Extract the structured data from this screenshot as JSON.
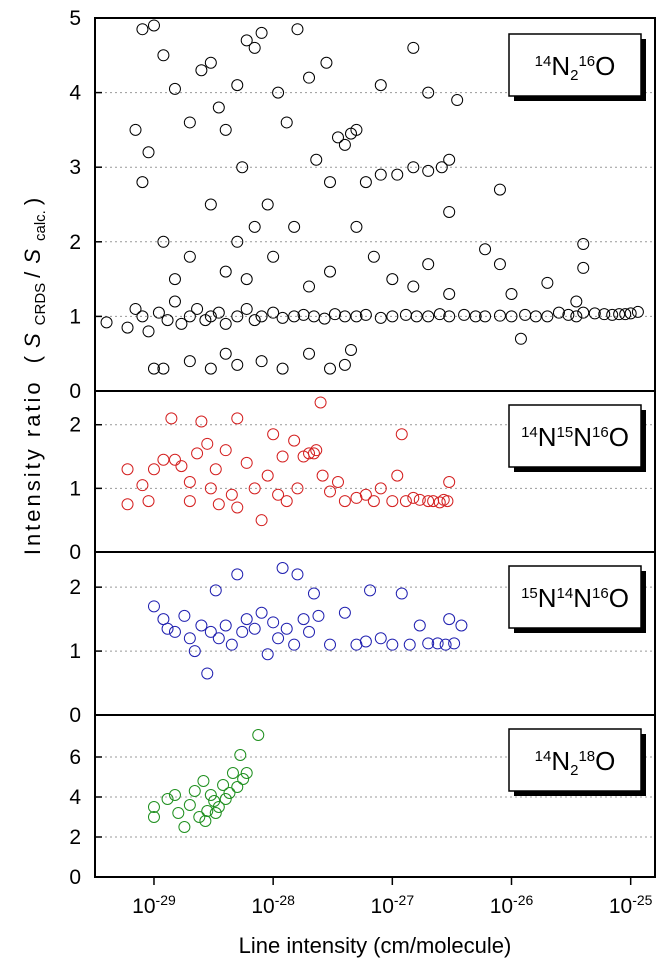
{
  "chart_data": [
    {
      "type": "scatter",
      "color": "#000000",
      "label": [
        {
          "text": "14",
          "style": "sup"
        },
        {
          "text": "N",
          "style": "normal"
        },
        {
          "text": "2",
          "style": "sub"
        },
        {
          "text": "16",
          "style": "sup"
        },
        {
          "text": "O",
          "style": "normal"
        }
      ],
      "xlim": [
        3.2e-30,
        1.6e-25
      ],
      "ylim": [
        0,
        5
      ],
      "yticks": [
        0,
        1,
        2,
        3,
        4,
        5
      ],
      "grid": true,
      "x": [
        4e-30,
        6e-30,
        7e-30,
        8e-30,
        9e-30,
        1.1e-29,
        1.3e-29,
        1.5e-29,
        1.7e-29,
        2e-29,
        2.3e-29,
        2.7e-29,
        3e-29,
        3.5e-29,
        4e-29,
        5e-29,
        6e-29,
        7e-29,
        8e-29,
        1e-28,
        1.2e-28,
        1.5e-28,
        1.8e-28,
        2.2e-28,
        2.7e-28,
        3.3e-28,
        4e-28,
        5e-28,
        6e-28,
        8e-28,
        1e-27,
        1.3e-27,
        1.6e-27,
        2e-27,
        2.5e-27,
        3e-27,
        4e-27,
        5e-27,
        6e-27,
        8e-27,
        1e-26,
        1.3e-26,
        1.6e-26,
        2e-26,
        2.5e-26,
        3e-26,
        3.5e-26,
        4e-26,
        5e-26,
        6e-26,
        7e-26,
        8e-26,
        9e-26,
        1e-25,
        1.15e-25,
        1e-29,
        1.2e-29,
        2e-29,
        3e-29,
        4e-29,
        5e-29,
        8e-29,
        1.2e-28,
        2e-28,
        3e-28,
        4e-28,
        4.5e-28,
        8e-30,
        1e-29,
        1.2e-29,
        7e-30,
        8e-30,
        9e-30,
        1.5e-29,
        2e-29,
        2.5e-29,
        3e-29,
        3.5e-29,
        4e-29,
        5e-29,
        5.5e-29,
        6e-29,
        7e-29,
        8e-29,
        9e-29,
        1.1e-28,
        1.3e-28,
        1.6e-28,
        2e-28,
        2.3e-28,
        2.8e-28,
        3.5e-28,
        4e-28,
        4.5e-28,
        5e-28,
        3e-28,
        6e-28,
        8e-28,
        1.1e-27,
        1.5e-27,
        2e-27,
        2.6e-27,
        3e-27,
        3.5e-27,
        3e-27,
        1.5e-27,
        8e-28,
        2e-27,
        5e-29,
        7e-29,
        1.2e-29,
        1.5e-29,
        2e-29,
        3e-29,
        4e-29,
        6e-29,
        1e-28,
        1.5e-28,
        2e-28,
        3e-28,
        5e-28,
        7e-28,
        1e-27,
        1.5e-27,
        2e-27,
        3e-27,
        6e-27,
        8e-27,
        1.2e-26,
        8e-27,
        4e-26,
        4e-26,
        3.5e-26,
        1e-26,
        2e-26
      ],
      "values": [
        0.92,
        0.85,
        1.1,
        1.0,
        0.8,
        1.05,
        0.95,
        1.2,
        0.9,
        1.0,
        1.1,
        0.95,
        1.0,
        1.05,
        0.9,
        1.0,
        1.1,
        0.95,
        1.0,
        1.05,
        0.98,
        1.0,
        1.02,
        1.0,
        0.97,
        1.03,
        1.0,
        1.0,
        1.02,
        0.98,
        1.0,
        1.02,
        1.0,
        1.0,
        1.03,
        1.0,
        1.02,
        1.0,
        1.0,
        1.01,
        1.0,
        1.02,
        1.0,
        1.0,
        1.05,
        1.02,
        1.0,
        1.05,
        1.04,
        1.03,
        1.02,
        1.03,
        1.03,
        1.04,
        1.06,
        0.3,
        0.3,
        0.4,
        0.3,
        0.5,
        0.35,
        0.4,
        0.3,
        0.5,
        0.3,
        0.35,
        0.55,
        4.85,
        4.9,
        4.5,
        3.5,
        2.8,
        3.2,
        4.05,
        3.6,
        4.3,
        4.4,
        3.8,
        3.5,
        4.1,
        3.0,
        4.7,
        4.6,
        4.8,
        2.5,
        4.0,
        3.6,
        4.85,
        4.2,
        3.1,
        4.4,
        3.4,
        3.3,
        3.45,
        3.5,
        2.8,
        2.8,
        2.9,
        2.9,
        3.0,
        2.95,
        3.0,
        3.1,
        3.9,
        2.4,
        4.6,
        4.1,
        4.0,
        2.0,
        2.2,
        2.0,
        1.5,
        1.8,
        2.5,
        1.6,
        1.5,
        1.8,
        2.2,
        1.4,
        1.6,
        2.2,
        1.8,
        1.5,
        1.4,
        1.7,
        1.3,
        1.9,
        1.7,
        0.7,
        2.7,
        1.65,
        1.97,
        1.2,
        1.3,
        1.45
      ]
    },
    {
      "type": "scatter",
      "color": "#d42020",
      "label": [
        {
          "text": "14",
          "style": "sup"
        },
        {
          "text": "N",
          "style": "normal"
        },
        {
          "text": "15",
          "style": "sup"
        },
        {
          "text": "N",
          "style": "normal"
        },
        {
          "text": "16",
          "style": "sup"
        },
        {
          "text": "O",
          "style": "normal"
        }
      ],
      "xlim": [
        3.2e-30,
        1.6e-25
      ],
      "ylim": [
        0,
        2.53
      ],
      "yticks": [
        0,
        1,
        2
      ],
      "grid": true,
      "x": [
        6e-30,
        6e-30,
        8e-30,
        9e-30,
        1e-29,
        1.2e-29,
        1.4e-29,
        1.5e-29,
        1.7e-29,
        2e-29,
        2e-29,
        2.3e-29,
        2.5e-29,
        2.8e-29,
        3e-29,
        3.3e-29,
        3.5e-29,
        4e-29,
        4.5e-29,
        5e-29,
        5e-29,
        6e-29,
        7e-29,
        8e-29,
        9e-29,
        1e-28,
        1.1e-28,
        1.2e-28,
        1.3e-28,
        1.5e-28,
        1.6e-28,
        1.8e-28,
        2e-28,
        2.2e-28,
        2.3e-28,
        2.5e-28,
        2.6e-28,
        3e-28,
        3.5e-28,
        4e-28,
        5e-28,
        6e-28,
        7e-28,
        8e-28,
        1e-27,
        1.1e-27,
        1.2e-27,
        1.3e-27,
        1.5e-27,
        1.7e-27,
        2e-27,
        2.2e-27,
        2.5e-27,
        2.7e-27,
        3e-27,
        2.9e-27
      ],
      "values": [
        1.3,
        0.75,
        1.05,
        0.8,
        1.3,
        1.45,
        2.1,
        1.45,
        1.35,
        1.1,
        0.8,
        1.55,
        2.05,
        1.7,
        1.0,
        1.3,
        0.75,
        1.6,
        0.9,
        2.1,
        0.7,
        1.4,
        1.0,
        0.5,
        1.2,
        1.85,
        0.9,
        1.5,
        0.8,
        1.75,
        1.0,
        1.5,
        1.55,
        1.55,
        1.6,
        2.35,
        1.2,
        0.95,
        1.1,
        0.8,
        0.85,
        0.9,
        0.8,
        1.0,
        0.8,
        1.2,
        1.85,
        0.8,
        0.85,
        0.82,
        0.8,
        0.8,
        0.78,
        0.82,
        1.1,
        0.8
      ]
    },
    {
      "type": "scatter",
      "color": "#2020b0",
      "label": [
        {
          "text": "15",
          "style": "sup"
        },
        {
          "text": "N",
          "style": "normal"
        },
        {
          "text": "14",
          "style": "sup"
        },
        {
          "text": "N",
          "style": "normal"
        },
        {
          "text": "16",
          "style": "sup"
        },
        {
          "text": "O",
          "style": "normal"
        }
      ],
      "xlim": [
        3.2e-30,
        1.6e-25
      ],
      "ylim": [
        0,
        2.55
      ],
      "yticks": [
        0,
        1,
        2
      ],
      "grid": true,
      "x": [
        1e-29,
        1.2e-29,
        1.3e-29,
        1.5e-29,
        1.8e-29,
        2e-29,
        2.2e-29,
        2.5e-29,
        2.8e-29,
        3e-29,
        3.3e-29,
        3.5e-29,
        4e-29,
        4.5e-29,
        5e-29,
        5.5e-29,
        6e-29,
        7e-29,
        8e-29,
        9e-29,
        1e-28,
        1.1e-28,
        1.2e-28,
        1.3e-28,
        1.5e-28,
        1.6e-28,
        1.8e-28,
        2e-28,
        2.2e-28,
        2.4e-28,
        3e-28,
        4e-28,
        5e-28,
        6e-28,
        6.5e-28,
        8e-28,
        1e-27,
        1.2e-27,
        1.4e-27,
        1.7e-27,
        2e-27,
        2.4e-27,
        2.8e-27,
        3e-27,
        3.3e-27,
        3.8e-27
      ],
      "values": [
        1.7,
        1.5,
        1.35,
        1.3,
        1.55,
        1.2,
        1.0,
        1.4,
        0.65,
        1.3,
        1.95,
        1.2,
        1.4,
        1.1,
        2.2,
        1.3,
        1.5,
        1.35,
        1.6,
        0.95,
        1.45,
        1.2,
        2.3,
        1.35,
        1.1,
        2.2,
        1.5,
        1.3,
        1.9,
        1.55,
        1.1,
        1.6,
        1.1,
        1.15,
        1.95,
        1.2,
        1.1,
        1.9,
        1.1,
        1.4,
        1.12,
        1.12,
        1.1,
        1.5,
        1.12,
        1.4
      ]
    },
    {
      "type": "scatter",
      "color": "#209020",
      "label": [
        {
          "text": "14",
          "style": "sup"
        },
        {
          "text": "N",
          "style": "normal"
        },
        {
          "text": "2",
          "style": "sub"
        },
        {
          "text": "18",
          "style": "sup"
        },
        {
          "text": "O",
          "style": "normal"
        }
      ],
      "xlim": [
        3.2e-30,
        1.6e-25
      ],
      "ylim": [
        0,
        8.1
      ],
      "yticks": [
        0,
        2,
        4,
        6
      ],
      "grid": true,
      "x": [
        1e-29,
        1e-29,
        1.3e-29,
        1.5e-29,
        1.6e-29,
        1.8e-29,
        2e-29,
        2.2e-29,
        2.4e-29,
        2.6e-29,
        2.8e-29,
        3e-29,
        3.2e-29,
        3.5e-29,
        3.8e-29,
        4e-29,
        4.3e-29,
        4.6e-29,
        5e-29,
        5.3e-29,
        5.6e-29,
        6e-29,
        7.5e-29,
        2.7e-29,
        3.3e-29
      ],
      "values": [
        3.5,
        3.0,
        3.9,
        4.1,
        3.2,
        2.5,
        3.6,
        4.3,
        3.0,
        4.8,
        3.3,
        4.1,
        3.8,
        3.5,
        4.6,
        3.9,
        4.2,
        5.2,
        4.5,
        6.1,
        4.9,
        5.2,
        7.1,
        2.8,
        3.2
      ],
      "xticks": [
        {
          "value": 1e-29,
          "label": "10",
          "exponent": "-29"
        },
        {
          "value": 1e-28,
          "label": "10",
          "exponent": "-28"
        },
        {
          "value": 1e-27,
          "label": "10",
          "exponent": "-27"
        },
        {
          "value": 1e-26,
          "label": "10",
          "exponent": "-26"
        },
        {
          "value": 1e-25,
          "label": "10",
          "exponent": "-25"
        }
      ],
      "x_label": "Line intensity (cm/molecule)",
      "y_label": [
        "Intensity ratio",
        "(",
        "S",
        "CRDS",
        "/",
        "S",
        "calc.",
        ")"
      ]
    }
  ]
}
